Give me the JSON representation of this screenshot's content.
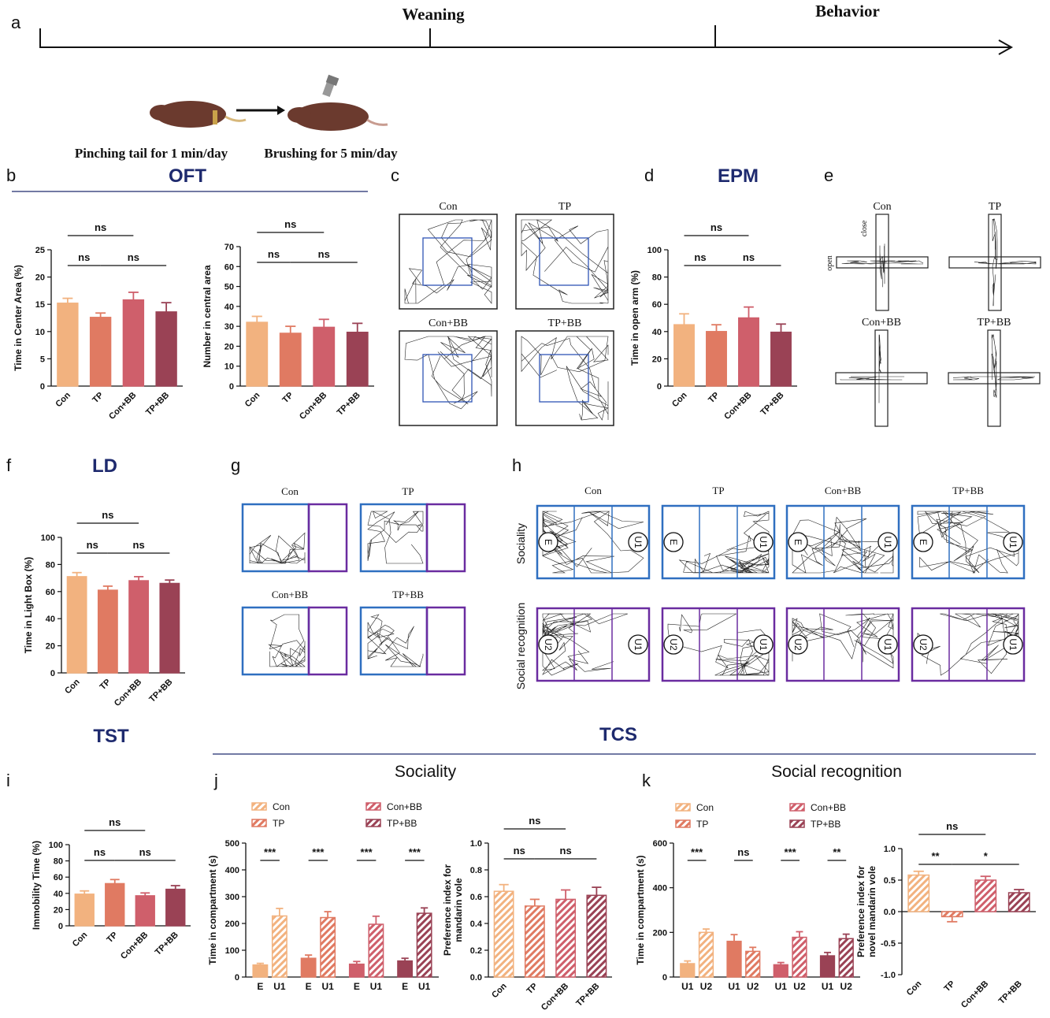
{
  "panel_letters": [
    "a",
    "b",
    "c",
    "d",
    "e",
    "f",
    "g",
    "h",
    "i",
    "j",
    "k"
  ],
  "timeline": {
    "labels": [
      "Weaning",
      "Behavior"
    ],
    "captions": [
      "Pinching tail for 1 min/day",
      "Brushing for 5 min/day"
    ]
  },
  "sections": [
    "OFT",
    "EPM",
    "LD",
    "TST",
    "TCS",
    "Sociality",
    "Social recognition"
  ],
  "tracks": {
    "groups": [
      "Con",
      "TP",
      "Con+BB",
      "TP+BB"
    ],
    "arms": [
      "close",
      "open"
    ],
    "chambers": [
      "E",
      "U1",
      "U2"
    ],
    "rows": [
      "Sociality",
      "Social recognition"
    ]
  },
  "chart_data": [
    {
      "type": "bar",
      "ylabel": "Time in Center Area (%)",
      "categories": [
        "Con",
        "TP",
        "Con+BB",
        "TP+BB"
      ],
      "values": [
        15.2,
        12.6,
        15.8,
        13.6
      ],
      "errors": [
        0.9,
        0.8,
        1.4,
        1.7
      ],
      "colors": [
        "#f2b27f",
        "#e07a62",
        "#cf5f6b",
        "#9a4255"
      ],
      "ylim": [
        0,
        25
      ],
      "yticks": [
        0,
        5,
        10,
        15,
        20,
        25
      ],
      "annotations": [
        "ns",
        "ns",
        "ns"
      ]
    },
    {
      "type": "bar",
      "ylabel": "Number in central area",
      "categories": [
        "Con",
        "TP",
        "Con+BB",
        "TP+BB"
      ],
      "values": [
        32,
        26.5,
        29.5,
        27
      ],
      "errors": [
        3,
        3.5,
        4,
        4.5
      ],
      "colors": [
        "#f2b27f",
        "#e07a62",
        "#cf5f6b",
        "#9a4255"
      ],
      "ylim": [
        0,
        70
      ],
      "yticks": [
        0,
        10,
        20,
        30,
        40,
        50,
        60,
        70
      ],
      "annotations": [
        "ns",
        "ns",
        "ns"
      ]
    },
    {
      "type": "bar",
      "ylabel": "Time in open arm (%)",
      "categories": [
        "Con",
        "TP",
        "Con+BB",
        "TP+BB"
      ],
      "values": [
        45,
        40,
        50,
        39.5
      ],
      "errors": [
        8,
        5,
        8,
        6
      ],
      "colors": [
        "#f2b27f",
        "#e07a62",
        "#cf5f6b",
        "#9a4255"
      ],
      "ylim": [
        0,
        100
      ],
      "yticks": [
        0,
        20,
        40,
        60,
        80,
        100
      ],
      "annotations": [
        "ns",
        "ns",
        "ns"
      ]
    },
    {
      "type": "bar",
      "ylabel": "Time in Light Box (%)",
      "categories": [
        "Con",
        "TP",
        "Con+BB",
        "TP+BB"
      ],
      "values": [
        71,
        61,
        68,
        66
      ],
      "errors": [
        3,
        3,
        3,
        2.5
      ],
      "colors": [
        "#f2b27f",
        "#e07a62",
        "#cf5f6b",
        "#9a4255"
      ],
      "ylim": [
        0,
        100
      ],
      "yticks": [
        0,
        20,
        40,
        60,
        80,
        100
      ],
      "annotations": [
        "ns",
        "ns",
        "ns"
      ]
    },
    {
      "type": "bar",
      "ylabel": "Immobility Time (%)",
      "categories": [
        "Con",
        "TP",
        "Con+BB",
        "TP+BB"
      ],
      "values": [
        39,
        52,
        37,
        45
      ],
      "errors": [
        4,
        5,
        3.5,
        4.5
      ],
      "colors": [
        "#f2b27f",
        "#e07a62",
        "#cf5f6b",
        "#9a4255"
      ],
      "ylim": [
        0,
        100
      ],
      "yticks": [
        0,
        20,
        40,
        60,
        80,
        100
      ],
      "annotations": [
        "ns",
        "ns",
        "ns"
      ]
    },
    {
      "type": "bar",
      "ylabel": "Time in compartment (s)",
      "categories": [
        "E",
        "U1",
        "E",
        "U1",
        "E",
        "U1",
        "E",
        "U1"
      ],
      "values": [
        45,
        228,
        70,
        222,
        48,
        197,
        60,
        238
      ],
      "errors": [
        6,
        28,
        12,
        22,
        10,
        30,
        10,
        20
      ],
      "colors": [
        "#f2b27f",
        "#f2b27f",
        "#e07a62",
        "#e07a62",
        "#cf5f6b",
        "#cf5f6b",
        "#9a4255",
        "#9a4255"
      ],
      "hatched": [
        false,
        true,
        false,
        true,
        false,
        true,
        false,
        true
      ],
      "legend": [
        "Con",
        "TP",
        "Con+BB",
        "TP+BB"
      ],
      "legend_colors": [
        "#f2b27f",
        "#e07a62",
        "#cf5f6b",
        "#9a4255"
      ],
      "ylim": [
        0,
        500
      ],
      "yticks": [
        0,
        100,
        200,
        300,
        400,
        500
      ],
      "annotations": [
        "***",
        "***",
        "***",
        "***"
      ]
    },
    {
      "type": "bar",
      "ylabel": [
        "Preference index for",
        "mandarin vole"
      ],
      "categories": [
        "Con",
        "TP",
        "Con+BB",
        "TP+BB"
      ],
      "values": [
        0.64,
        0.53,
        0.58,
        0.61
      ],
      "errors": [
        0.05,
        0.05,
        0.07,
        0.06
      ],
      "colors": [
        "#f2b27f",
        "#e07a62",
        "#cf5f6b",
        "#9a4255"
      ],
      "hatched": [
        true,
        true,
        true,
        true
      ],
      "ylim": [
        0,
        1
      ],
      "yticks": [
        {
          "value": 0,
          "label": "0.0"
        },
        0.2,
        0.4,
        0.6,
        0.8,
        {
          "value": 1,
          "label": "1.0"
        }
      ],
      "annotations": [
        "ns",
        "ns",
        "ns"
      ]
    },
    {
      "type": "bar",
      "ylabel": "Time in compartment (s)",
      "categories": [
        "U1",
        "U2",
        "U1",
        "U2",
        "U1",
        "U2",
        "U1",
        "U2"
      ],
      "values": [
        60,
        200,
        160,
        115,
        55,
        178,
        95,
        172
      ],
      "errors": [
        12,
        15,
        30,
        18,
        10,
        25,
        15,
        20
      ],
      "colors": [
        "#f2b27f",
        "#f2b27f",
        "#e07a62",
        "#e07a62",
        "#cf5f6b",
        "#cf5f6b",
        "#9a4255",
        "#9a4255"
      ],
      "hatched": [
        false,
        true,
        false,
        true,
        false,
        true,
        false,
        true
      ],
      "legend": [
        "Con",
        "TP",
        "Con+BB",
        "TP+BB"
      ],
      "legend_colors": [
        "#f2b27f",
        "#e07a62",
        "#cf5f6b",
        "#9a4255"
      ],
      "ylim": [
        0,
        600
      ],
      "yticks": [
        0,
        200,
        400,
        600
      ],
      "annotations": [
        "***",
        "ns",
        "***",
        "**"
      ]
    },
    {
      "type": "bar",
      "ylabel": [
        "Preference index for",
        "novel  mandarin vole"
      ],
      "categories": [
        "Con",
        "TP",
        "Con+BB",
        "TP+BB"
      ],
      "values": [
        0.58,
        -0.08,
        0.5,
        0.3
      ],
      "errors": [
        0.06,
        0.08,
        0.06,
        0.05
      ],
      "colors": [
        "#f2b27f",
        "#e07a62",
        "#cf5f6b",
        "#9a4255"
      ],
      "hatched": [
        true,
        true,
        true,
        true
      ],
      "ylim": [
        -1,
        1
      ],
      "yticks": [
        {
          "value": -1,
          "label": "-1.0"
        },
        -0.5,
        {
          "value": 0,
          "label": "0.0"
        },
        0.5,
        {
          "value": 1,
          "label": "1.0"
        }
      ],
      "annotations": [
        "ns",
        "**",
        "*"
      ]
    }
  ]
}
